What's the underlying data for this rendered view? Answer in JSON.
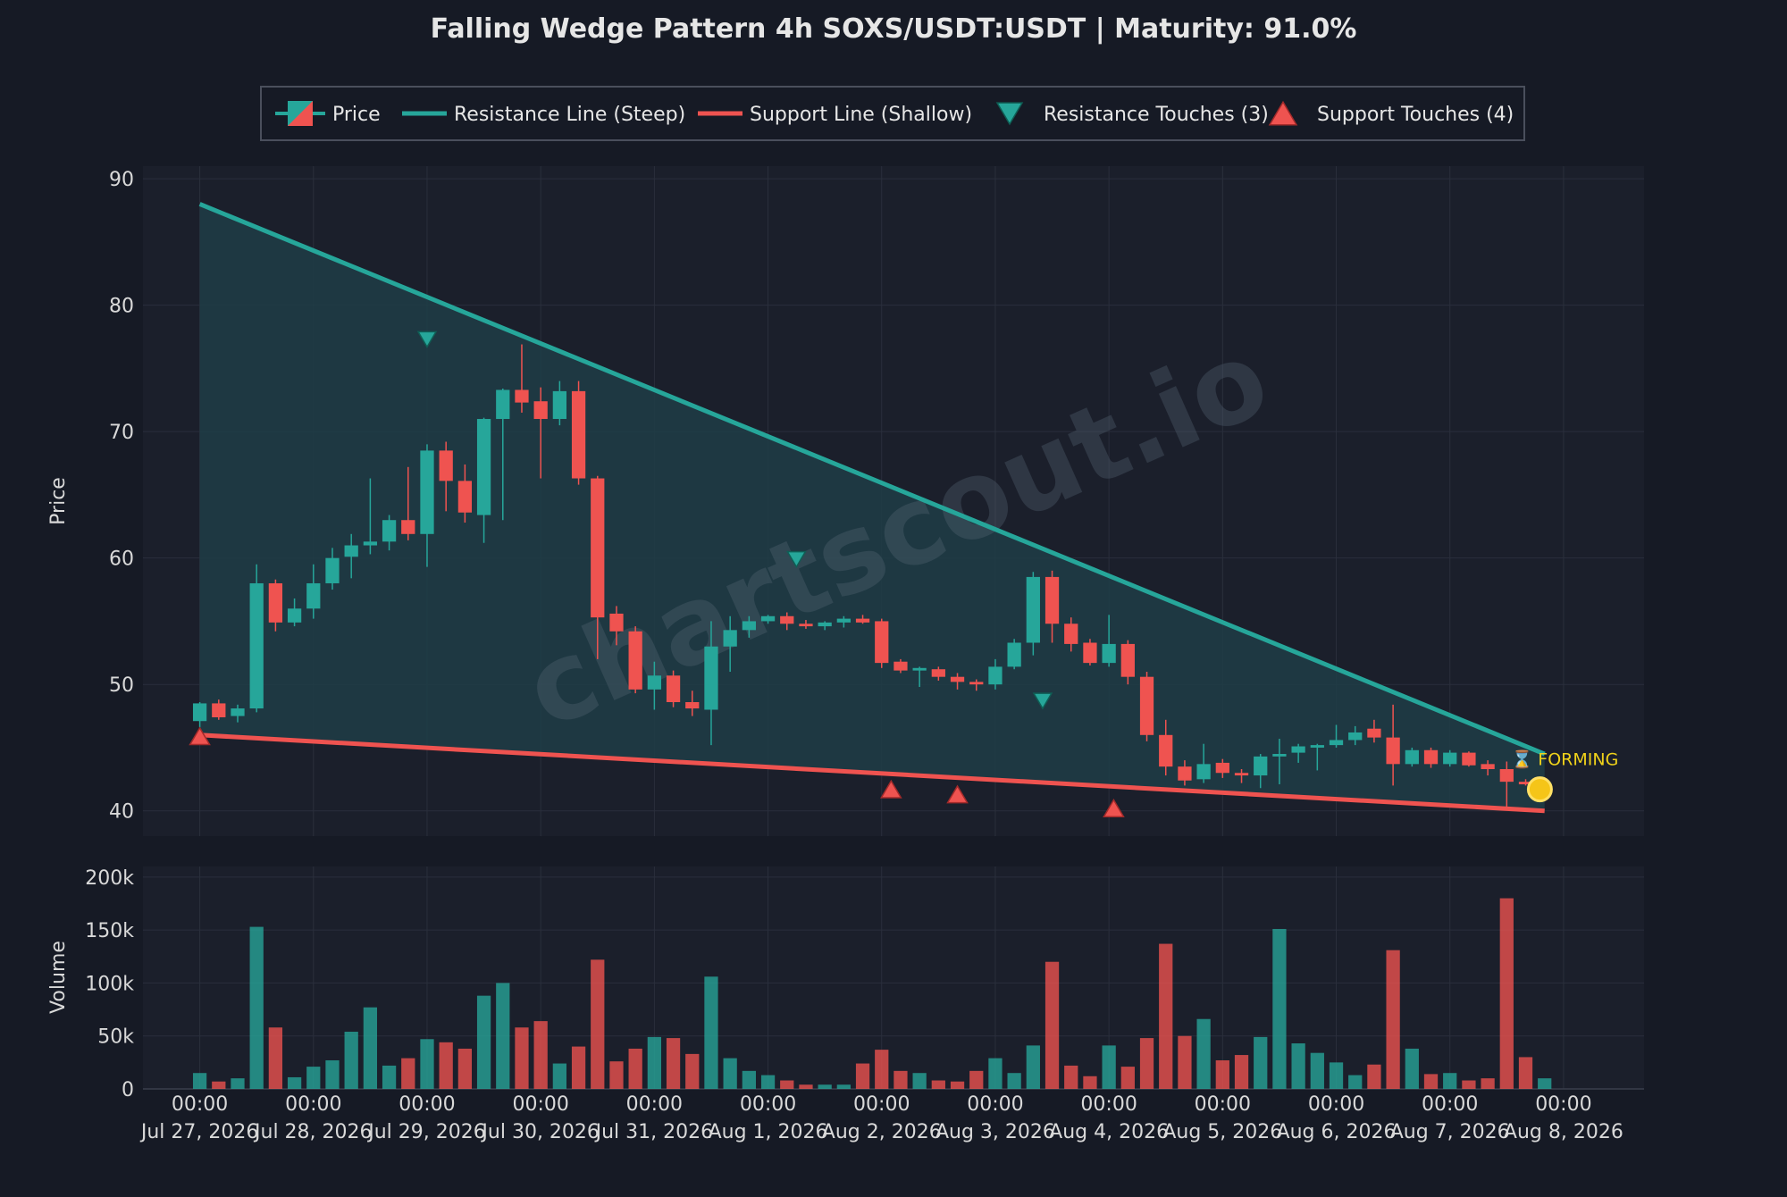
{
  "colors": {
    "background": "#161a25",
    "panel": "#1b1f2b",
    "grid": "#2a2f3c",
    "up": "#26a69a",
    "down": "#ef5350",
    "resistance": "#26a69a",
    "support": "#ef5350",
    "wedge_fill": "#1f3d46",
    "forming": "#f0d21a",
    "text": "#e6e6e6"
  },
  "watermark": "chartscout.io",
  "chart_data": {
    "type": "candlestick",
    "title": "Falling Wedge Pattern 4h SOXS/USDT:USDT | Maturity: 91.0%",
    "ylabel": "Price",
    "volume_ylabel": "Volume",
    "ylim": [
      38,
      91
    ],
    "volume_ylim": [
      0,
      210000
    ],
    "yticks": [
      40,
      50,
      60,
      70,
      80,
      90
    ],
    "volume_ticks": [
      {
        "value": 0,
        "label": "0"
      },
      {
        "value": 50000,
        "label": "50k"
      },
      {
        "value": 100000,
        "label": "100k"
      },
      {
        "value": 150000,
        "label": "150k"
      },
      {
        "value": 200000,
        "label": "200k"
      }
    ],
    "interval_hours": 4,
    "x_range_hours": [
      -12,
      305
    ],
    "x_ticks": [
      {
        "hours": 0,
        "time": "00:00",
        "date": "Jul 27, 2026"
      },
      {
        "hours": 24,
        "time": "00:00",
        "date": "Jul 28, 2026"
      },
      {
        "hours": 48,
        "time": "00:00",
        "date": "Jul 29, 2026"
      },
      {
        "hours": 72,
        "time": "00:00",
        "date": "Jul 30, 2026"
      },
      {
        "hours": 96,
        "time": "00:00",
        "date": "Jul 31, 2026"
      },
      {
        "hours": 120,
        "time": "00:00",
        "date": "Aug 1, 2026"
      },
      {
        "hours": 144,
        "time": "00:00",
        "date": "Aug 2, 2026"
      },
      {
        "hours": 168,
        "time": "00:00",
        "date": "Aug 3, 2026"
      },
      {
        "hours": 192,
        "time": "00:00",
        "date": "Aug 4, 2026"
      },
      {
        "hours": 216,
        "time": "00:00",
        "date": "Aug 5, 2026"
      },
      {
        "hours": 240,
        "time": "00:00",
        "date": "Aug 6, 2026"
      },
      {
        "hours": 264,
        "time": "00:00",
        "date": "Aug 7, 2026"
      },
      {
        "hours": 288,
        "time": "00:00",
        "date": "Aug 8, 2026"
      }
    ],
    "grid": true,
    "legend_position": "top-center",
    "legend": [
      {
        "key": "price",
        "label": "Price"
      },
      {
        "key": "resistance",
        "label": "Resistance Line (Steep)"
      },
      {
        "key": "support",
        "label": "Support Line (Shallow)"
      },
      {
        "key": "res_touch",
        "label": "Resistance Touches (3)"
      },
      {
        "key": "sup_touch",
        "label": "Support Touches (4)"
      }
    ],
    "candles": [
      [
        47.1,
        48.6,
        46.6,
        48.5,
        15000
      ],
      [
        48.5,
        48.8,
        47.2,
        47.4,
        7000
      ],
      [
        47.5,
        48.4,
        47.0,
        48.1,
        10000
      ],
      [
        48.1,
        59.5,
        47.8,
        58.0,
        153000
      ],
      [
        58.0,
        58.3,
        54.2,
        54.9,
        58000
      ],
      [
        54.9,
        56.8,
        54.6,
        56.0,
        11000
      ],
      [
        56.0,
        59.5,
        55.2,
        58.0,
        21000
      ],
      [
        58.0,
        60.8,
        57.5,
        60.0,
        27000
      ],
      [
        60.1,
        61.9,
        58.4,
        61.0,
        54000
      ],
      [
        61.0,
        66.3,
        60.3,
        61.3,
        77000
      ],
      [
        61.3,
        63.4,
        60.6,
        63.0,
        22000
      ],
      [
        63.0,
        67.2,
        61.4,
        61.9,
        29000
      ],
      [
        61.9,
        69.0,
        59.3,
        68.5,
        47000
      ],
      [
        68.5,
        69.2,
        63.7,
        66.1,
        44000
      ],
      [
        66.1,
        67.4,
        62.8,
        63.6,
        38000
      ],
      [
        63.4,
        71.1,
        61.2,
        71.0,
        88000
      ],
      [
        71.0,
        73.4,
        63.0,
        73.3,
        100000
      ],
      [
        73.3,
        76.9,
        71.5,
        72.3,
        58000
      ],
      [
        72.4,
        73.5,
        66.3,
        71.0,
        64000
      ],
      [
        71.0,
        74.0,
        70.5,
        73.2,
        24000
      ],
      [
        73.2,
        74.0,
        65.8,
        66.3,
        40000
      ],
      [
        66.3,
        66.5,
        52.0,
        55.3,
        122000
      ],
      [
        55.6,
        56.2,
        53.1,
        54.2,
        26000
      ],
      [
        54.2,
        54.6,
        49.3,
        49.6,
        38000
      ],
      [
        49.6,
        51.8,
        48.0,
        50.7,
        49000
      ],
      [
        50.7,
        51.1,
        48.2,
        48.6,
        48000
      ],
      [
        48.6,
        49.5,
        47.5,
        48.1,
        33000
      ],
      [
        48.0,
        55.0,
        45.2,
        53.0,
        106000
      ],
      [
        53.0,
        55.4,
        51.0,
        54.3,
        29000
      ],
      [
        54.3,
        55.4,
        53.7,
        55.0,
        17000
      ],
      [
        55.0,
        55.5,
        54.8,
        55.4,
        13000
      ],
      [
        55.4,
        55.7,
        54.3,
        54.8,
        8000
      ],
      [
        54.8,
        55.1,
        54.4,
        54.6,
        4000
      ],
      [
        54.6,
        55.0,
        54.3,
        54.9,
        4000
      ],
      [
        54.9,
        55.4,
        54.5,
        55.2,
        4000
      ],
      [
        55.2,
        55.5,
        54.8,
        54.9,
        24000
      ],
      [
        55.0,
        55.2,
        51.3,
        51.7,
        37000
      ],
      [
        51.8,
        52.0,
        50.9,
        51.1,
        17000
      ],
      [
        51.1,
        51.4,
        49.8,
        51.3,
        15000
      ],
      [
        51.2,
        51.4,
        50.3,
        50.6,
        8000
      ],
      [
        50.6,
        50.9,
        49.6,
        50.2,
        7000
      ],
      [
        50.2,
        50.4,
        49.5,
        50.0,
        17000
      ],
      [
        50.0,
        52.0,
        49.6,
        51.4,
        29000
      ],
      [
        51.4,
        53.6,
        51.2,
        53.3,
        15000
      ],
      [
        53.3,
        58.9,
        52.3,
        58.5,
        41000
      ],
      [
        58.5,
        59.0,
        53.3,
        54.8,
        120000
      ],
      [
        54.8,
        55.3,
        52.6,
        53.2,
        22000
      ],
      [
        53.3,
        53.6,
        51.5,
        51.7,
        12000
      ],
      [
        51.7,
        55.5,
        51.4,
        53.2,
        41000
      ],
      [
        53.2,
        53.5,
        50.0,
        50.6,
        21000
      ],
      [
        50.6,
        51.0,
        45.5,
        46.0,
        48000
      ],
      [
        46.0,
        47.2,
        42.8,
        43.5,
        137000
      ],
      [
        43.5,
        44.0,
        42.0,
        42.4,
        50000
      ],
      [
        42.5,
        45.3,
        42.2,
        43.7,
        66000
      ],
      [
        43.8,
        44.1,
        42.6,
        43.0,
        27000
      ],
      [
        43.0,
        43.3,
        42.2,
        42.8,
        32000
      ],
      [
        42.8,
        44.5,
        41.8,
        44.3,
        49000
      ],
      [
        44.3,
        45.7,
        42.1,
        44.5,
        151000
      ],
      [
        44.6,
        45.3,
        43.8,
        45.1,
        43000
      ],
      [
        45.0,
        45.3,
        43.2,
        45.2,
        34000
      ],
      [
        45.2,
        46.8,
        45.0,
        45.6,
        25000
      ],
      [
        45.6,
        46.7,
        45.2,
        46.2,
        13000
      ],
      [
        46.5,
        47.2,
        45.4,
        45.8,
        23000
      ],
      [
        45.8,
        48.4,
        42.0,
        43.7,
        131000
      ],
      [
        43.7,
        45.0,
        43.5,
        44.8,
        38000
      ],
      [
        44.8,
        45.0,
        43.4,
        43.7,
        14000
      ],
      [
        43.7,
        44.8,
        43.5,
        44.6,
        15000
      ],
      [
        44.6,
        44.7,
        43.5,
        43.6,
        8000
      ],
      [
        43.7,
        44.0,
        42.8,
        43.3,
        10000
      ],
      [
        43.3,
        43.9,
        40.3,
        42.3,
        180000
      ],
      [
        42.3,
        42.5,
        42.0,
        42.1,
        30000
      ],
      [
        42.1,
        42.3,
        41.9,
        42.2,
        10000
      ]
    ],
    "resistance_line": [
      [
        0,
        88.0
      ],
      [
        284,
        44.5
      ]
    ],
    "support_line": [
      [
        0,
        46.0
      ],
      [
        284,
        40.0
      ]
    ],
    "resistance_touches": [
      [
        48,
        77.3
      ],
      [
        126,
        59.9
      ],
      [
        178,
        48.7
      ]
    ],
    "support_touches": [
      [
        0,
        45.9
      ],
      [
        146,
        41.7
      ],
      [
        160,
        41.3
      ],
      [
        193,
        40.2
      ]
    ],
    "current_point": [
      283,
      41.7
    ],
    "forming_label": "⌛ FORMING",
    "forming_point": [
      277,
      44.1
    ]
  }
}
